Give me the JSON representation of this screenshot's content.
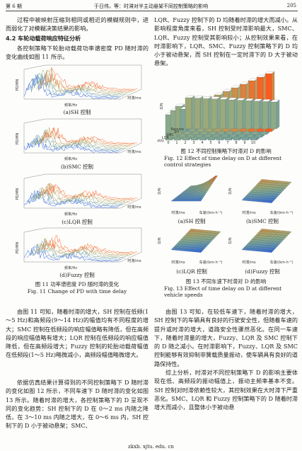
{
  "header": {
    "issue": "第 6 期",
    "running_title": "于日伟，等：时滞对半主动悬架不同控制策略的影响",
    "page": "205"
  },
  "left": {
    "para1": "过程中被映射压缩到相同或相近的模糊规则中，进而弱化了对模糊决策结果的影响。",
    "heading": "4.2  车轮动载荷响应特征分析",
    "para2": "各控制策略下轮胎动载荷功率谱密度 PD 随时滞的变化曲线如图 11 所示。",
    "para3": "由图 11 可知，随着时滞的增大，SH 控制在低频(1～5 Hz)和高频段(9～14 Hz)的幅值均有不同程度的增大；SMC 控制在低频段的响应幅值略有降低，但在高频段的响应幅值略有增大；LQR 控制在低频段的响应幅值降低，但在高频段增大；Fuzzy 控制的轮胎动载荷幅值在低频段(1～5 Hz)略微减小，高频段幅值略微增大。",
    "para4": "依据仿真结果计算得到的不同控制策略下 D 随时滞的变化如图 12 所示，不同车速下 D 随时滞的变化如图 13 所示。随着时滞的增大，各控制策略下的 D 呈现不同的变化趋势：SH 控制下的 D 在 0～2 ms 内随之降低，在 3～10 ms 内随之增大，在 0～6 ms 内，SH 控制下的 D 小于被动悬架；SMC、"
  },
  "figure11": {
    "panels": [
      {
        "label": "(a)SH 控制",
        "y_axis": "PD/MN",
        "x_axis": "频率/Hz",
        "z_axis": "时滞/ms"
      },
      {
        "label": "(b)SMC 控制",
        "y_axis": "PD/MN",
        "x_axis": "频率/Hz",
        "z_axis": "时滞/ms"
      },
      {
        "label": "(c)LQR 控制",
        "y_axis": "PD/MN",
        "x_axis": "频率/Hz",
        "z_axis": "时滞/ms"
      },
      {
        "label": "(d)Fuzzy 控制",
        "y_axis": "PD/MN",
        "x_axis": "频率/Hz",
        "z_axis": "时滞/ms"
      }
    ],
    "caption_cn": "图 11   功率谱密度 PD 随时滞的变化",
    "caption_en": "Fig. 11   Change of PD with time delay"
  },
  "right": {
    "para1": "LQR、Fuzzy 控制下的 D 均随着时滞的增大而减小。从影响程度角度来看，SH 控制受时滞影响最大，SMC、LQR、Fuzzy 控制受其影响较小；从控制效果来看，在时滞影响下，LQR、SMC、Fuzzy 控制策略下的 D 均小于被动悬架，而 SH 控制在一定时滞下的 D 大于被动悬架。",
    "para2": "由图 13 可知，在较低车速下，随着时滞的增大，SH 控制下的车辆具有良好的行驶安全性，但随着车速的提升或时滞的增大，道路安全性骤然恶化。在同一车速下，随着时滞量的增大，Fuzzy、LQR 及 SMC 控制下的 D 随之减小。在时滞影响下，Fuzzy、LQR 及 SMC 控制能够有效抑制非簧载质量振动，使车辆具有良好的道路保持性。",
    "para3": "综上分析，时滞对不同控制策略下 D 的影响主要体现在低、高频段的振动幅值上，振动主频率基本不变。SH 控制对时滞依赖性较大，其控制效果在大时滞下严重恶化。SMC、LQR 和 Fuzzy 控制策略下的 D 随着时滞增大而减小，且整体小于被动悬"
  },
  "figure12": {
    "y_axis": "D/N",
    "delays": [
      "0",
      "1",
      "2",
      "3",
      "4",
      "5",
      "6",
      "7",
      "8",
      "9",
      "10"
    ],
    "strategies": [
      "Passive",
      "SH",
      "SMC",
      "LQR",
      "Fuzzy"
    ],
    "caption_cn": "图 12   不同控制策略下时滞对 D 的影响",
    "caption_en": "Fig. 12   Effect of time delay on D at different control strategies"
  },
  "figure13": {
    "panels": [
      {
        "label": "(a)SH 控制",
        "y_axis": "D/N",
        "x_axis": "时滞/ms",
        "z_axis": "车速/(km·h⁻¹)"
      },
      {
        "label": "(b)SMC 控制",
        "y_axis": "D/N",
        "x_axis": "时滞/ms",
        "z_axis": "车速/(km·h⁻¹)"
      },
      {
        "label": "(c)LQR 控制",
        "y_axis": "D/N",
        "x_axis": "时滞/ms",
        "z_axis": "车速/(km·h⁻¹)"
      },
      {
        "label": "(d)Fuzzy 控制",
        "y_axis": "D/N",
        "x_axis": "时滞/ms",
        "z_axis": "车速/(km·h⁻¹)"
      }
    ],
    "caption_cn": "图 13   不同车速下时滞对 D 的影响",
    "caption_en": "Fig. 13   Effect of time delay on D at different vehicle speeds"
  },
  "footer": "zkxb. xjtu. edu. cn"
}
